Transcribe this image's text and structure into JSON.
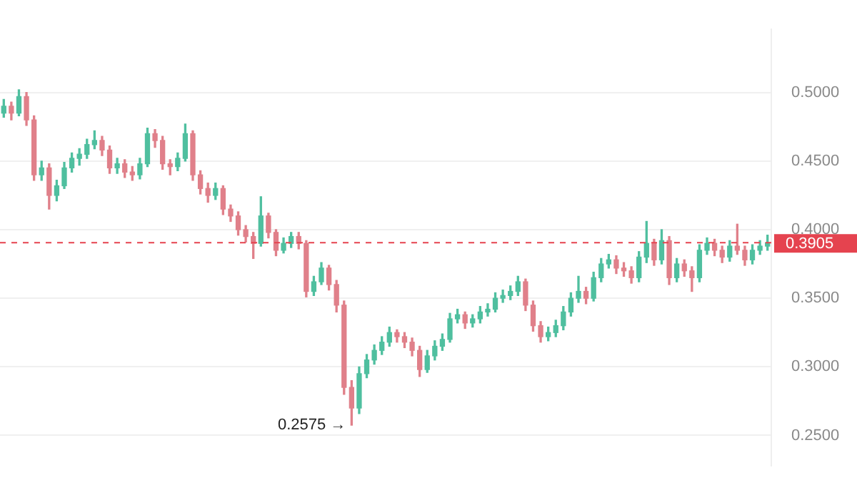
{
  "chart_data": {
    "type": "candlestick",
    "categories": [
      null,
      null,
      null,
      null,
      null,
      null,
      null,
      null,
      null,
      null,
      null,
      null,
      null,
      null,
      null,
      null,
      null,
      null,
      null,
      null,
      null,
      null,
      null,
      null,
      null,
      null,
      null,
      null,
      null,
      null,
      null,
      null,
      null,
      null,
      null,
      null,
      null,
      null,
      null,
      null,
      null,
      null,
      null,
      null,
      null,
      null,
      null,
      null,
      null,
      null,
      null,
      null,
      null,
      null,
      null,
      null,
      null,
      null,
      null,
      null,
      null,
      null,
      null,
      null,
      null,
      null,
      null,
      null,
      null,
      null,
      null,
      null,
      null,
      null,
      null,
      null,
      null,
      null,
      null,
      null,
      null,
      null,
      null,
      null,
      null,
      null,
      null,
      null,
      null,
      null,
      null,
      null,
      null,
      null,
      null,
      null,
      null,
      null,
      null,
      null,
      null,
      null
    ],
    "ohlc": [
      [
        0.485,
        0.495,
        0.482,
        0.49
      ],
      [
        0.49,
        0.493,
        0.48,
        0.485
      ],
      [
        0.485,
        0.502,
        0.483,
        0.497
      ],
      [
        0.497,
        0.5,
        0.476,
        0.48
      ],
      [
        0.48,
        0.483,
        0.436,
        0.44
      ],
      [
        0.44,
        0.45,
        0.436,
        0.445
      ],
      [
        0.445,
        0.448,
        0.415,
        0.425
      ],
      [
        0.425,
        0.436,
        0.421,
        0.432
      ],
      [
        0.432,
        0.449,
        0.43,
        0.445
      ],
      [
        0.445,
        0.456,
        0.442,
        0.452
      ],
      [
        0.452,
        0.459,
        0.447,
        0.455
      ],
      [
        0.455,
        0.466,
        0.452,
        0.462
      ],
      [
        0.462,
        0.472,
        0.459,
        0.465
      ],
      [
        0.465,
        0.468,
        0.454,
        0.458
      ],
      [
        0.458,
        0.461,
        0.441,
        0.445
      ],
      [
        0.445,
        0.452,
        0.441,
        0.448
      ],
      [
        0.448,
        0.451,
        0.438,
        0.442
      ],
      [
        0.442,
        0.446,
        0.436,
        0.44
      ],
      [
        0.44,
        0.452,
        0.437,
        0.448
      ],
      [
        0.448,
        0.474,
        0.446,
        0.47
      ],
      [
        0.47,
        0.473,
        0.46,
        0.465
      ],
      [
        0.465,
        0.468,
        0.444,
        0.448
      ],
      [
        0.448,
        0.451,
        0.44,
        0.446
      ],
      [
        0.446,
        0.456,
        0.443,
        0.452
      ],
      [
        0.452,
        0.477,
        0.45,
        0.47
      ],
      [
        0.47,
        0.472,
        0.436,
        0.44
      ],
      [
        0.44,
        0.443,
        0.426,
        0.43
      ],
      [
        0.43,
        0.434,
        0.42,
        0.425
      ],
      [
        0.425,
        0.434,
        0.422,
        0.43
      ],
      [
        0.43,
        0.432,
        0.411,
        0.415
      ],
      [
        0.415,
        0.418,
        0.406,
        0.41
      ],
      [
        0.41,
        0.413,
        0.396,
        0.4
      ],
      [
        0.4,
        0.403,
        0.391,
        0.395
      ],
      [
        0.395,
        0.398,
        0.379,
        0.39
      ],
      [
        0.39,
        0.424,
        0.388,
        0.41
      ],
      [
        0.41,
        0.412,
        0.394,
        0.398
      ],
      [
        0.398,
        0.4,
        0.381,
        0.385
      ],
      [
        0.385,
        0.394,
        0.383,
        0.39
      ],
      [
        0.39,
        0.398,
        0.387,
        0.395
      ],
      [
        0.395,
        0.398,
        0.386,
        0.39
      ],
      [
        0.39,
        0.392,
        0.351,
        0.355
      ],
      [
        0.355,
        0.366,
        0.352,
        0.362
      ],
      [
        0.362,
        0.376,
        0.36,
        0.372
      ],
      [
        0.372,
        0.374,
        0.356,
        0.36
      ],
      [
        0.36,
        0.363,
        0.34,
        0.345
      ],
      [
        0.345,
        0.348,
        0.28,
        0.285
      ],
      [
        0.285,
        0.29,
        0.2575,
        0.27
      ],
      [
        0.27,
        0.3,
        0.266,
        0.295
      ],
      [
        0.295,
        0.309,
        0.292,
        0.305
      ],
      [
        0.305,
        0.316,
        0.302,
        0.312
      ],
      [
        0.312,
        0.322,
        0.309,
        0.318
      ],
      [
        0.318,
        0.329,
        0.315,
        0.325
      ],
      [
        0.325,
        0.327,
        0.318,
        0.322
      ],
      [
        0.322,
        0.325,
        0.314,
        0.318
      ],
      [
        0.318,
        0.321,
        0.308,
        0.312
      ],
      [
        0.312,
        0.315,
        0.293,
        0.298
      ],
      [
        0.298,
        0.312,
        0.296,
        0.308
      ],
      [
        0.308,
        0.319,
        0.305,
        0.315
      ],
      [
        0.315,
        0.324,
        0.312,
        0.32
      ],
      [
        0.32,
        0.339,
        0.318,
        0.335
      ],
      [
        0.335,
        0.342,
        0.332,
        0.338
      ],
      [
        0.338,
        0.34,
        0.328,
        0.332
      ],
      [
        0.332,
        0.338,
        0.329,
        0.335
      ],
      [
        0.335,
        0.344,
        0.332,
        0.34
      ],
      [
        0.34,
        0.346,
        0.337,
        0.342
      ],
      [
        0.342,
        0.354,
        0.34,
        0.35
      ],
      [
        0.35,
        0.356,
        0.347,
        0.352
      ],
      [
        0.352,
        0.359,
        0.349,
        0.355
      ],
      [
        0.355,
        0.366,
        0.352,
        0.362
      ],
      [
        0.362,
        0.364,
        0.341,
        0.345
      ],
      [
        0.345,
        0.348,
        0.326,
        0.33
      ],
      [
        0.33,
        0.333,
        0.318,
        0.322
      ],
      [
        0.322,
        0.329,
        0.319,
        0.325
      ],
      [
        0.325,
        0.334,
        0.322,
        0.33
      ],
      [
        0.33,
        0.344,
        0.327,
        0.34
      ],
      [
        0.34,
        0.354,
        0.337,
        0.35
      ],
      [
        0.35,
        0.366,
        0.347,
        0.355
      ],
      [
        0.355,
        0.358,
        0.346,
        0.35
      ],
      [
        0.35,
        0.369,
        0.348,
        0.365
      ],
      [
        0.365,
        0.379,
        0.362,
        0.375
      ],
      [
        0.375,
        0.382,
        0.372,
        0.378
      ],
      [
        0.378,
        0.381,
        0.368,
        0.372
      ],
      [
        0.372,
        0.376,
        0.366,
        0.37
      ],
      [
        0.37,
        0.373,
        0.361,
        0.365
      ],
      [
        0.365,
        0.384,
        0.362,
        0.38
      ],
      [
        0.38,
        0.406,
        0.376,
        0.39
      ],
      [
        0.39,
        0.393,
        0.374,
        0.378
      ],
      [
        0.378,
        0.4,
        0.375,
        0.392
      ],
      [
        0.392,
        0.395,
        0.36,
        0.365
      ],
      [
        0.365,
        0.379,
        0.362,
        0.375
      ],
      [
        0.375,
        0.378,
        0.366,
        0.37
      ],
      [
        0.37,
        0.373,
        0.355,
        0.365
      ],
      [
        0.365,
        0.389,
        0.362,
        0.385
      ],
      [
        0.385,
        0.394,
        0.382,
        0.39
      ],
      [
        0.39,
        0.393,
        0.381,
        0.385
      ],
      [
        0.385,
        0.388,
        0.376,
        0.38
      ],
      [
        0.38,
        0.392,
        0.377,
        0.388
      ],
      [
        0.388,
        0.404,
        0.382,
        0.385
      ],
      [
        0.385,
        0.388,
        0.374,
        0.378
      ],
      [
        0.378,
        0.389,
        0.375,
        0.385
      ],
      [
        0.385,
        0.392,
        0.382,
        0.388
      ],
      [
        0.388,
        0.396,
        0.385,
        0.3905
      ]
    ],
    "colors": [
      "#4fbf9f",
      "#e0808a",
      "#4fbf9f",
      "#e0808a",
      "#e0808a",
      "#4fbf9f",
      "#e0808a",
      "#4fbf9f",
      "#4fbf9f",
      "#4fbf9f",
      "#4fbf9f",
      "#4fbf9f",
      "#4fbf9f",
      "#e0808a",
      "#e0808a",
      "#4fbf9f",
      "#e0808a",
      "#e0808a",
      "#4fbf9f",
      "#4fbf9f",
      "#e0808a",
      "#e0808a",
      "#e0808a",
      "#4fbf9f",
      "#4fbf9f",
      "#e0808a",
      "#e0808a",
      "#e0808a",
      "#4fbf9f",
      "#e0808a",
      "#e0808a",
      "#e0808a",
      "#e0808a",
      "#e0808a",
      "#4fbf9f",
      "#e0808a",
      "#e0808a",
      "#4fbf9f",
      "#4fbf9f",
      "#e0808a",
      "#e0808a",
      "#4fbf9f",
      "#4fbf9f",
      "#e0808a",
      "#e0808a",
      "#e0808a",
      "#e0808a",
      "#4fbf9f",
      "#4fbf9f",
      "#4fbf9f",
      "#4fbf9f",
      "#4fbf9f",
      "#e0808a",
      "#e0808a",
      "#e0808a",
      "#e0808a",
      "#4fbf9f",
      "#4fbf9f",
      "#4fbf9f",
      "#4fbf9f",
      "#4fbf9f",
      "#e0808a",
      "#4fbf9f",
      "#4fbf9f",
      "#4fbf9f",
      "#4fbf9f",
      "#4fbf9f",
      "#4fbf9f",
      "#4fbf9f",
      "#e0808a",
      "#e0808a",
      "#e0808a",
      "#4fbf9f",
      "#4fbf9f",
      "#4fbf9f",
      "#4fbf9f",
      "#4fbf9f",
      "#e0808a",
      "#4fbf9f",
      "#4fbf9f",
      "#4fbf9f",
      "#e0808a",
      "#e0808a",
      "#e0808a",
      "#4fbf9f",
      "#4fbf9f",
      "#e0808a",
      "#4fbf9f",
      "#e0808a",
      "#4fbf9f",
      "#e0808a",
      "#e0808a",
      "#4fbf9f",
      "#4fbf9f",
      "#e0808a",
      "#e0808a",
      "#4fbf9f",
      "#e0808a",
      "#e0808a",
      "#4fbf9f",
      "#4fbf9f",
      "#4fbf9f"
    ],
    "ylim": [
      0.228,
      0.546
    ],
    "yticks": [
      {
        "value": 0.25,
        "label": "0.2500"
      },
      {
        "value": 0.3,
        "label": "0.3000"
      },
      {
        "value": 0.35,
        "label": "0.3500"
      },
      {
        "value": 0.4,
        "label": "0.4000"
      },
      {
        "value": 0.45,
        "label": "0.4500"
      },
      {
        "value": 0.5,
        "label": "0.5000"
      }
    ],
    "ref_lines": [
      {
        "axis": "y",
        "value": 0.3905,
        "label": "0.3905",
        "color": "#e5434f",
        "line_style": "dashed"
      }
    ],
    "annotations": [
      "0.2575 →"
    ],
    "grid": "y",
    "tick_labels": "y"
  }
}
